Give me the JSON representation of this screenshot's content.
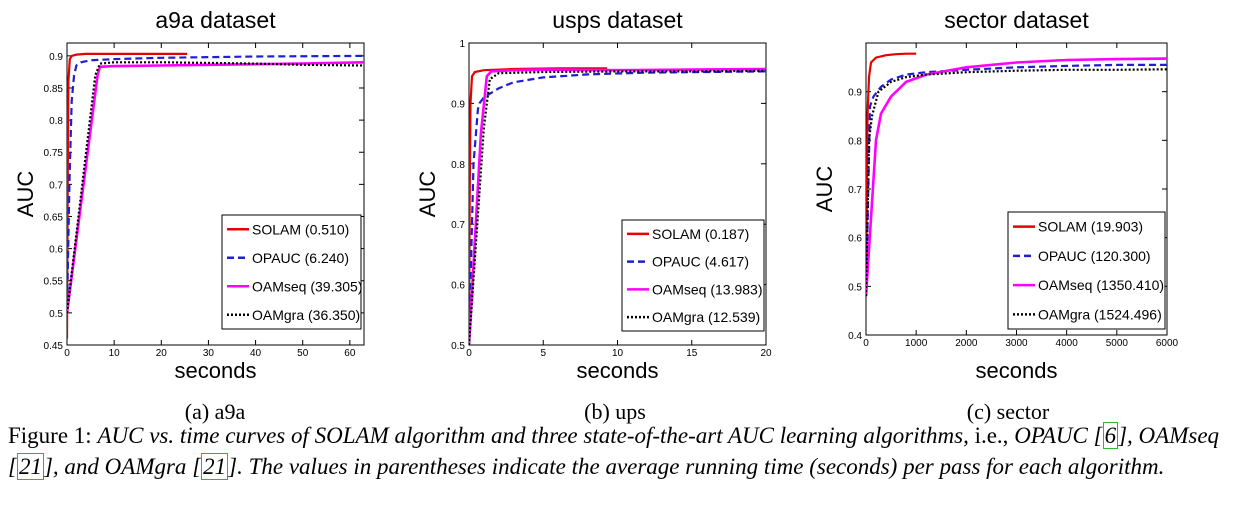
{
  "panels": [
    {
      "title": "a9a dataset",
      "sublabel": "(a)  a9a",
      "xlabel": "seconds",
      "ylabel": "AUC"
    },
    {
      "title": "usps dataset",
      "sublabel": "(b)  ups",
      "xlabel": "seconds",
      "ylabel": "AUC"
    },
    {
      "title": "sector dataset",
      "sublabel": "(c)  sector",
      "xlabel": "seconds",
      "ylabel": "AUC"
    }
  ],
  "caption": {
    "prefix": "Figure 1:",
    "part1": "AUC vs. time curves of SOLAM algorithm and three state-of-the-art AUC learning algorithms,",
    "ie": "i.e.,",
    "part2": "OPAUC",
    "cite1": "6",
    "part3": ", OAMseq",
    "cite2": "21",
    "part4": ", and OAMgra",
    "cite3": "21",
    "part5": ". The values in parentheses indicate the average running time (seconds) per pass for each algorithm."
  },
  "colors": {
    "SOLAM": "#e60000",
    "OPAUC": "#1f1fd1",
    "OAMseq": "#ff00ff",
    "OAMgra": "#000000"
  },
  "chart_data": [
    {
      "type": "line",
      "title": "a9a dataset",
      "xlabel": "seconds",
      "ylabel": "AUC",
      "xlim": [
        0,
        63
      ],
      "ylim": [
        0.45,
        0.92
      ],
      "xticks": [
        0,
        10,
        20,
        30,
        40,
        50,
        60
      ],
      "yticks": [
        0.45,
        0.5,
        0.55,
        0.6,
        0.65,
        0.7,
        0.75,
        0.8,
        0.85,
        0.9
      ],
      "ytick_labels": [
        "0.45",
        "0.5",
        "0.55",
        "0.6",
        "0.65",
        "0.7",
        "0.75",
        "0.8",
        "0.85",
        "0.9"
      ],
      "grid": false,
      "legend_position": "bottom-right",
      "series": [
        {
          "name": "SOLAM (0.510)",
          "key": "SOLAM",
          "dash": "solid",
          "x": [
            0,
            0.15,
            0.3,
            0.6,
            1,
            2,
            4,
            8,
            15,
            25.5
          ],
          "y": [
            0.46,
            0.7,
            0.86,
            0.895,
            0.9,
            0.902,
            0.903,
            0.903,
            0.903,
            0.903
          ]
        },
        {
          "name": "OPAUC (6.240)",
          "key": "OPAUC",
          "dash": "dashed",
          "x": [
            0,
            0.5,
            1,
            1.5,
            2,
            3,
            5,
            10,
            20,
            40,
            63
          ],
          "y": [
            0.5,
            0.7,
            0.83,
            0.87,
            0.885,
            0.89,
            0.893,
            0.895,
            0.897,
            0.899,
            0.9
          ]
        },
        {
          "name": "OAMseq (39.305)",
          "key": "OAMseq",
          "dash": "solid",
          "x": [
            0,
            6.5,
            7,
            10,
            20,
            30,
            40,
            50,
            63
          ],
          "y": [
            0.5,
            0.87,
            0.883,
            0.884,
            0.885,
            0.886,
            0.887,
            0.888,
            0.89
          ]
        },
        {
          "name": "OAMgra (36.350)",
          "key": "OAMgra",
          "dash": "dotted",
          "x": [
            0,
            6,
            7,
            10,
            20,
            30,
            40,
            50,
            63
          ],
          "y": [
            0.5,
            0.87,
            0.888,
            0.89,
            0.89,
            0.889,
            0.888,
            0.886,
            0.885
          ]
        }
      ]
    },
    {
      "type": "line",
      "title": "usps dataset",
      "xlabel": "seconds",
      "ylabel": "AUC",
      "xlim": [
        0,
        20
      ],
      "ylim": [
        0.5,
        1
      ],
      "xticks": [
        0,
        5,
        10,
        15,
        20
      ],
      "yticks": [
        0.5,
        0.6,
        0.7,
        0.8,
        0.9,
        1
      ],
      "ytick_labels": [
        "0.5",
        "0.6",
        "0.7",
        "0.8",
        "0.9",
        "1"
      ],
      "grid": false,
      "legend_position": "bottom-right",
      "series": [
        {
          "name": "SOLAM (0.187)",
          "key": "SOLAM",
          "dash": "solid",
          "x": [
            0,
            0.05,
            0.1,
            0.2,
            0.4,
            1,
            3,
            6,
            9.3
          ],
          "y": [
            0.51,
            0.75,
            0.9,
            0.945,
            0.952,
            0.955,
            0.957,
            0.958,
            0.958
          ]
        },
        {
          "name": "OPAUC (4.617)",
          "key": "OPAUC",
          "dash": "dashed",
          "x": [
            0,
            0.3,
            0.6,
            0.7,
            1,
            2,
            3,
            5,
            8,
            12,
            16,
            20
          ],
          "y": [
            0.5,
            0.8,
            0.89,
            0.9,
            0.91,
            0.925,
            0.935,
            0.943,
            0.948,
            0.951,
            0.952,
            0.953
          ]
        },
        {
          "name": "OAMseq (13.983)",
          "key": "OAMseq",
          "dash": "solid",
          "x": [
            0,
            0.8,
            1.2,
            1.5,
            3,
            5,
            10,
            15,
            20
          ],
          "y": [
            0.5,
            0.85,
            0.945,
            0.953,
            0.955,
            0.956,
            0.955,
            0.956,
            0.957
          ]
        },
        {
          "name": "OAMgra (12.539)",
          "key": "OAMgra",
          "dash": "dotted",
          "x": [
            0,
            1,
            1.4,
            2,
            5,
            10,
            15,
            20
          ],
          "y": [
            0.5,
            0.86,
            0.94,
            0.95,
            0.952,
            0.953,
            0.953,
            0.954
          ]
        }
      ]
    },
    {
      "type": "line",
      "title": "sector dataset",
      "xlabel": "seconds",
      "ylabel": "AUC",
      "xlim": [
        0,
        6000
      ],
      "ylim": [
        0.4,
        1
      ],
      "xticks": [
        0,
        1000,
        2000,
        3000,
        4000,
        5000,
        6000
      ],
      "yticks": [
        0.4,
        0.5,
        0.6,
        0.7,
        0.8,
        0.9
      ],
      "ytick_labels": [
        "0.4",
        "0.5",
        "0.6",
        "0.7",
        "0.8",
        "0.9"
      ],
      "grid": false,
      "legend_position": "bottom-right",
      "series": [
        {
          "name": "SOLAM (19.903)",
          "key": "SOLAM",
          "dash": "solid",
          "x": [
            0,
            30,
            60,
            100,
            200,
            400,
            600,
            800,
            1000
          ],
          "y": [
            0.48,
            0.85,
            0.93,
            0.96,
            0.97,
            0.975,
            0.977,
            0.978,
            0.978
          ]
        },
        {
          "name": "OPAUC (120.300)",
          "key": "OPAUC",
          "dash": "dashed",
          "x": [
            0,
            80,
            150,
            300,
            500,
            800,
            1200,
            2000,
            3000,
            4000,
            5000,
            6000
          ],
          "y": [
            0.48,
            0.87,
            0.89,
            0.91,
            0.925,
            0.935,
            0.94,
            0.945,
            0.95,
            0.953,
            0.955,
            0.955
          ]
        },
        {
          "name": "OAMseq (1350.410)",
          "key": "OAMseq",
          "dash": "solid",
          "x": [
            0,
            200,
            300,
            500,
            800,
            1200,
            2000,
            3000,
            4000,
            5000,
            6000
          ],
          "y": [
            0.48,
            0.8,
            0.855,
            0.89,
            0.92,
            0.935,
            0.95,
            0.96,
            0.965,
            0.967,
            0.968
          ]
        },
        {
          "name": "OAMgra (1524.496)",
          "key": "OAMgra",
          "dash": "dotted",
          "x": [
            0,
            60,
            120,
            250,
            500,
            800,
            1200,
            2000,
            3000,
            4000,
            5000,
            6000
          ],
          "y": [
            0.48,
            0.8,
            0.85,
            0.9,
            0.92,
            0.93,
            0.935,
            0.94,
            0.943,
            0.945,
            0.945,
            0.946
          ]
        }
      ]
    }
  ]
}
